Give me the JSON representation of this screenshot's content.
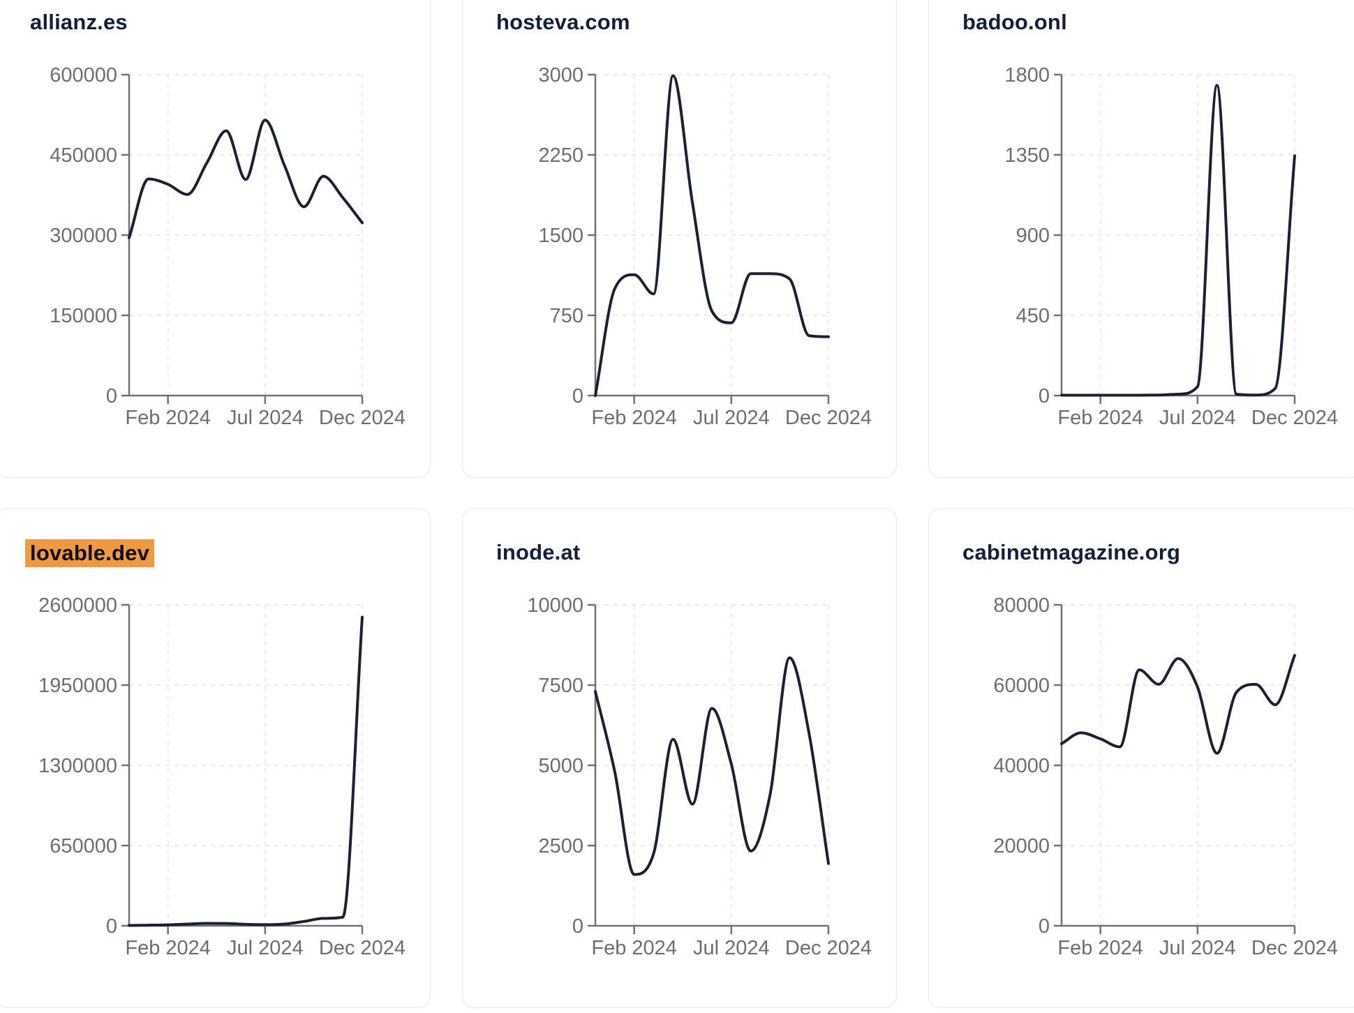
{
  "page": {
    "background": "#ffffff"
  },
  "style": {
    "line_color": "#1b2132",
    "grid_color": "#e8e8ea",
    "axis_color": "#717171",
    "tick_label_color": "#6d6d72",
    "title_color": "#14203a",
    "card_border": "#e3e8f1",
    "highlight_bg": "#ef9a43",
    "highlight_text": "#0d0d0d"
  },
  "x_axis": {
    "tick_labels": [
      "Feb 2024",
      "Jul 2024",
      "Dec 2024"
    ],
    "tick_indices": [
      2,
      7,
      12
    ]
  },
  "chart_data": [
    {
      "type": "line",
      "title": "allianz.es",
      "highlighted": false,
      "x_tick_labels": [
        "Feb 2024",
        "Jul 2024",
        "Dec 2024"
      ],
      "y_ticks": [
        0,
        150000,
        300000,
        450000,
        600000
      ],
      "ylim": [
        0,
        600000
      ],
      "values": [
        295000,
        405000,
        395000,
        376000,
        435000,
        495000,
        404000,
        515000,
        430000,
        353000,
        410000,
        370000,
        323000
      ]
    },
    {
      "type": "line",
      "title": "hosteva.com",
      "highlighted": false,
      "x_tick_labels": [
        "Feb 2024",
        "Jul 2024",
        "Dec 2024"
      ],
      "y_ticks": [
        0,
        750,
        1500,
        2250,
        3000
      ],
      "ylim": [
        0,
        3000
      ],
      "values": [
        0,
        1000,
        1130,
        950,
        2990,
        1800,
        790,
        680,
        1140,
        1140,
        1090,
        560,
        550
      ]
    },
    {
      "type": "line",
      "title": "badoo.onl",
      "highlighted": false,
      "x_tick_labels": [
        "Feb 2024",
        "Jul 2024",
        "Dec 2024"
      ],
      "y_ticks": [
        0,
        450,
        900,
        1350,
        1800
      ],
      "ylim": [
        0,
        1800
      ],
      "values": [
        2,
        2,
        2,
        2,
        2,
        3,
        8,
        50,
        1740,
        8,
        3,
        40,
        1345
      ]
    },
    {
      "type": "line",
      "title": "lovable.dev",
      "highlighted": true,
      "x_tick_labels": [
        "Feb 2024",
        "Jul 2024",
        "Dec 2024"
      ],
      "y_ticks": [
        0,
        650000,
        1300000,
        1950000,
        2600000
      ],
      "ylim": [
        0,
        2600000
      ],
      "values": [
        3000,
        5000,
        8000,
        14000,
        20000,
        19000,
        12000,
        9000,
        14000,
        35000,
        60000,
        70000,
        2500000
      ]
    },
    {
      "type": "line",
      "title": "inode.at",
      "highlighted": false,
      "x_tick_labels": [
        "Feb 2024",
        "Jul 2024",
        "Dec 2024"
      ],
      "y_ticks": [
        0,
        2500,
        5000,
        7500,
        10000
      ],
      "ylim": [
        0,
        10000
      ],
      "values": [
        7300,
        4800,
        1600,
        2250,
        5810,
        3790,
        6775,
        5040,
        2330,
        4100,
        8350,
        6000,
        1940
      ]
    },
    {
      "type": "line",
      "title": "cabinetmagazine.org",
      "highlighted": false,
      "x_tick_labels": [
        "Feb 2024",
        "Jul 2024",
        "Dec 2024"
      ],
      "y_ticks": [
        0,
        20000,
        40000,
        60000,
        80000
      ],
      "ylim": [
        0,
        80000
      ],
      "values": [
        45400,
        48100,
        46600,
        44600,
        63800,
        60200,
        66600,
        59500,
        43000,
        58200,
        60200,
        55100,
        67400
      ]
    }
  ]
}
